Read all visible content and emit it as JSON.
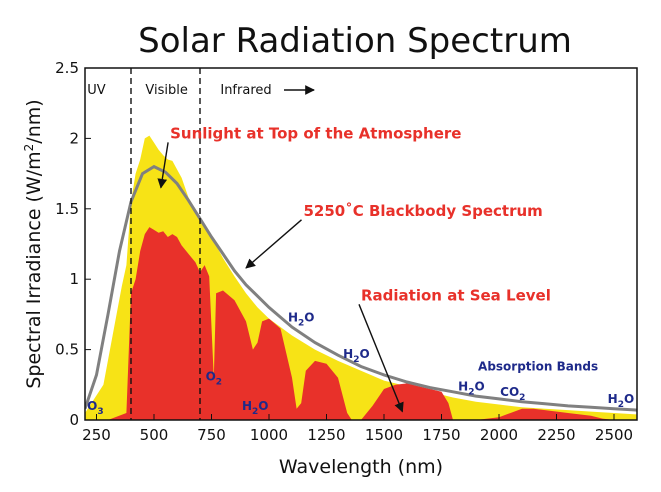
{
  "chart_data": {
    "type": "area",
    "title": "Solar Radiation Spectrum",
    "xlabel": "Wavelength (nm)",
    "ylabel_main": "Spectral Irradiance (W/m",
    "ylabel_sup": "2",
    "ylabel_tail": "/nm)",
    "xlim": [
      200,
      2600
    ],
    "ylim": [
      0,
      2.5
    ],
    "grid": false,
    "x_ticks": [
      250,
      500,
      750,
      1000,
      1250,
      1500,
      1750,
      2000,
      2250,
      2500
    ],
    "x_tick_labels": [
      "250",
      "500",
      "750",
      "1000",
      "1250",
      "1500",
      "1750",
      "2000",
      "2250",
      "2500"
    ],
    "y_ticks": [
      0,
      0.5,
      1,
      1.5,
      2,
      2.5
    ],
    "y_tick_labels": [
      "0",
      "0.5",
      "1",
      "1.5",
      "2",
      "2.5"
    ],
    "regions": [
      {
        "label": "UV",
        "x": 250
      },
      {
        "label": "Visible",
        "x": 555
      },
      {
        "label": "Infrared",
        "x": 900
      }
    ],
    "region_dividers_x": [
      400,
      700
    ],
    "series": [
      {
        "name": "Sunlight at Top of the Atmosphere",
        "color": "#f7e316",
        "x": [
          200,
          280,
          320,
          360,
          380,
          400,
          420,
          440,
          460,
          480,
          500,
          520,
          540,
          560,
          580,
          600,
          620,
          650,
          700,
          750,
          800,
          850,
          900,
          950,
          1000,
          1100,
          1200,
          1300,
          1400,
          1500,
          1600,
          1700,
          1800,
          1900,
          2000,
          2100,
          2200,
          2300,
          2400,
          2500,
          2600
        ],
        "y": [
          0.05,
          0.25,
          0.6,
          0.95,
          1.1,
          1.55,
          1.75,
          1.85,
          2.0,
          2.02,
          1.97,
          1.92,
          1.88,
          1.85,
          1.84,
          1.78,
          1.72,
          1.58,
          1.44,
          1.3,
          1.15,
          1.02,
          0.9,
          0.8,
          0.72,
          0.6,
          0.5,
          0.42,
          0.35,
          0.28,
          0.24,
          0.2,
          0.16,
          0.13,
          0.11,
          0.09,
          0.08,
          0.07,
          0.06,
          0.05,
          0.04
        ]
      },
      {
        "name": "Radiation at Sea Level",
        "color": "#e8312a",
        "x": [
          200,
          300,
          380,
          400,
          420,
          440,
          460,
          480,
          500,
          520,
          540,
          560,
          580,
          600,
          620,
          650,
          680,
          700,
          720,
          740,
          760,
          770,
          800,
          850,
          900,
          930,
          950,
          970,
          1000,
          1050,
          1100,
          1120,
          1140,
          1160,
          1200,
          1250,
          1300,
          1340,
          1360,
          1380,
          1400,
          1450,
          1500,
          1550,
          1600,
          1650,
          1700,
          1750,
          1780,
          1800,
          1850,
          1900,
          1950,
          2000,
          2050,
          2100,
          2150,
          2200,
          2300,
          2400,
          2450,
          2500,
          2600
        ],
        "y": [
          0,
          0,
          0.05,
          0.9,
          1.0,
          1.2,
          1.32,
          1.37,
          1.35,
          1.33,
          1.34,
          1.3,
          1.32,
          1.3,
          1.24,
          1.18,
          1.12,
          1.05,
          1.1,
          1.02,
          0.3,
          0.9,
          0.92,
          0.85,
          0.7,
          0.5,
          0.55,
          0.7,
          0.72,
          0.65,
          0.3,
          0.08,
          0.12,
          0.35,
          0.42,
          0.4,
          0.3,
          0.05,
          0.0,
          0.0,
          0.0,
          0.1,
          0.22,
          0.25,
          0.26,
          0.24,
          0.22,
          0.2,
          0.12,
          0.0,
          0.0,
          0.0,
          0.01,
          0.02,
          0.05,
          0.08,
          0.08,
          0.07,
          0.05,
          0.03,
          0.01,
          0.0,
          0.0
        ]
      },
      {
        "name": "5250°C Blackbody Spectrum",
        "color": "#808080",
        "x": [
          200,
          250,
          300,
          350,
          400,
          450,
          500,
          550,
          600,
          650,
          700,
          750,
          800,
          850,
          900,
          1000,
          1100,
          1200,
          1300,
          1400,
          1500,
          1600,
          1700,
          1800,
          1900,
          2000,
          2100,
          2200,
          2300,
          2400,
          2500,
          2600
        ],
        "y": [
          0.08,
          0.32,
          0.75,
          1.2,
          1.55,
          1.75,
          1.8,
          1.76,
          1.68,
          1.56,
          1.43,
          1.3,
          1.18,
          1.06,
          0.96,
          0.8,
          0.66,
          0.55,
          0.46,
          0.38,
          0.32,
          0.27,
          0.23,
          0.2,
          0.17,
          0.15,
          0.13,
          0.115,
          0.1,
          0.09,
          0.08,
          0.07
        ]
      }
    ],
    "callouts": [
      {
        "text": "Sunlight at Top of the Atmosphere",
        "label_x": 570,
        "label_y": 2.0,
        "target_x": 530,
        "target_y": 1.65
      },
      {
        "text": "5250˚C Blackbody Spectrum",
        "label_x": 1150,
        "label_y": 1.45,
        "target_x": 900,
        "target_y": 1.08
      },
      {
        "text": "Radiation at Sea Level",
        "label_x": 1400,
        "label_y": 0.85,
        "target_x": 1580,
        "target_y": 0.06
      }
    ],
    "absorption_label": {
      "text": "Absorption Bands",
      "x": 2170,
      "y": 0.35
    },
    "absorption_bands": [
      {
        "base": "O",
        "sub": "3",
        "x": 245,
        "y": 0.07
      },
      {
        "base": "O",
        "sub": "2",
        "x": 760,
        "y": 0.28
      },
      {
        "base": "H",
        "sub": "2",
        "tail": "O",
        "x": 940,
        "y": 0.07
      },
      {
        "base": "H",
        "sub": "2",
        "tail": "O",
        "x": 1140,
        "y": 0.7
      },
      {
        "base": "H",
        "sub": "2",
        "tail": "O",
        "x": 1380,
        "y": 0.44
      },
      {
        "base": "H",
        "sub": "2",
        "tail": "O",
        "x": 1880,
        "y": 0.21
      },
      {
        "base": "CO",
        "sub": "2",
        "x": 2060,
        "y": 0.17
      },
      {
        "base": "H",
        "sub": "2",
        "tail": "O",
        "x": 2530,
        "y": 0.12
      }
    ]
  }
}
